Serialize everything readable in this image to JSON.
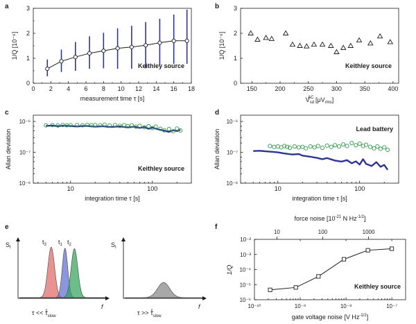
{
  "panel_letters": [
    "a",
    "b",
    "c",
    "d",
    "e",
    "f"
  ],
  "colors": {
    "error_bar": "#2d3493",
    "trace_blue": "#2d3493",
    "circle_green": "#2f9a4a",
    "peak_red": "#e06868",
    "peak_blue": "#5d6fd0",
    "peak_green": "#33a35d",
    "peak_grey": "#999999"
  },
  "chart_data": [
    {
      "id": "a",
      "type": "line",
      "xlabel": "measurement time τ [s]",
      "ylabel": "1/Q [10⁻⁶]",
      "annotation": "Keithley source",
      "xlim": [
        0,
        18
      ],
      "ylim": [
        0,
        3
      ],
      "x_ticks": [
        "0",
        "2",
        "4",
        "6",
        "8",
        "10",
        "12",
        "14",
        "16",
        "18"
      ],
      "y_ticks": [
        "0",
        "1",
        "2",
        "3"
      ],
      "x": [
        1.6,
        3.2,
        4.8,
        6.4,
        8.0,
        9.6,
        11.2,
        12.8,
        14.4,
        16.0,
        17.5
      ],
      "y": [
        0.58,
        0.88,
        1.05,
        1.2,
        1.3,
        1.4,
        1.45,
        1.52,
        1.62,
        1.7,
        1.7
      ],
      "err_low": [
        0.28,
        0.45,
        0.5,
        0.58,
        0.6,
        0.58,
        0.58,
        0.6,
        0.72,
        0.78,
        0.78
      ],
      "err_high": [
        0.95,
        1.35,
        1.65,
        1.88,
        2.02,
        2.2,
        2.3,
        2.45,
        2.58,
        2.75,
        2.95
      ]
    },
    {
      "id": "b",
      "type": "scatter",
      "xlabel": "V",
      "xlabel_sup": "AC",
      "xlabel_sub": "sd",
      "xlabel_unit": " [μV",
      "xlabel_unit_sub": "rms",
      "xlabel_end": "]",
      "ylabel": "1/Q [10⁻⁶]",
      "annotation": "Keithley source",
      "xlim": [
        130,
        410
      ],
      "ylim": [
        0,
        3
      ],
      "x_ticks": [
        "150",
        "200",
        "250",
        "300",
        "350",
        "400"
      ],
      "y_ticks": [
        "0",
        "1",
        "2",
        "3"
      ],
      "x": [
        148,
        160,
        175,
        185,
        210,
        222,
        235,
        247,
        260,
        275,
        290,
        300,
        312,
        325,
        340,
        360,
        377,
        395
      ],
      "y": [
        2.0,
        1.75,
        1.82,
        1.78,
        2.0,
        1.55,
        1.5,
        1.48,
        1.55,
        1.55,
        1.5,
        1.25,
        1.42,
        1.5,
        1.72,
        1.6,
        1.88,
        1.65
      ]
    },
    {
      "id": "c",
      "type": "line",
      "xscale": "log",
      "yscale": "log",
      "xlabel": "integration time τ [s]",
      "ylabel": "Allan deviation",
      "annotation": "Keithley source",
      "xlim": [
        3.5,
        300
      ],
      "ylim": [
        1e-08,
        1.6e-06
      ],
      "x_ticks": [
        "10",
        "100"
      ],
      "y_ticks": [
        "10⁻⁶",
        "10⁻⁷",
        "10⁻⁸"
      ],
      "series": [
        {
          "marker": "line",
          "x": [
            5,
            6,
            7,
            8,
            10,
            12,
            15,
            20,
            25,
            30,
            40,
            50,
            60,
            70,
            80,
            90,
            100,
            120,
            140,
            160,
            180,
            200,
            220
          ],
          "y": [
            7.2e-07,
            7.4e-07,
            7e-07,
            7.3e-07,
            7.1e-07,
            6.9e-07,
            7.2e-07,
            6.8e-07,
            7e-07,
            6.6e-07,
            6.9e-07,
            6.4e-07,
            6.8e-07,
            6.2e-07,
            6.6e-07,
            5.8e-07,
            6.3e-07,
            5.5e-07,
            5e-07,
            4.6e-07,
            5.2e-07,
            4.9e-07,
            5.4e-07
          ]
        },
        {
          "marker": "circle",
          "x": [
            5,
            6,
            7,
            8,
            9,
            10,
            12,
            14,
            16,
            18,
            20,
            23,
            26,
            30,
            35,
            40,
            45,
            50,
            56,
            63,
            70,
            80,
            90,
            100,
            110,
            125,
            140,
            160,
            180,
            200,
            220
          ],
          "y": [
            7.5e-07,
            7.6e-07,
            7.4e-07,
            7.7e-07,
            7.5e-07,
            7.6e-07,
            7.7e-07,
            7.5e-07,
            7.8e-07,
            7.6e-07,
            7.7e-07,
            7.5e-07,
            7.9e-07,
            7.4e-07,
            7.7e-07,
            7.2e-07,
            7.6e-07,
            7e-07,
            7.5e-07,
            6.8e-07,
            7.2e-07,
            6.5e-07,
            7e-07,
            6.1e-07,
            6.8e-07,
            5.8e-07,
            5.2e-07,
            5.7e-07,
            4.8e-07,
            5.9e-07,
            5.1e-07
          ]
        }
      ]
    },
    {
      "id": "d",
      "type": "line",
      "xscale": "log",
      "yscale": "log",
      "xlabel": "integration time τ [s]",
      "ylabel": "Allan deviation",
      "annotation": "Lead battery",
      "xlim": [
        3.5,
        300
      ],
      "ylim": [
        1e-08,
        1.6e-06
      ],
      "x_ticks": [
        "10",
        "100"
      ],
      "y_ticks": [
        "10⁻⁶",
        "10⁻⁷",
        "10⁻⁸"
      ],
      "series": [
        {
          "marker": "line",
          "x": [
            5,
            6,
            7,
            8,
            10,
            12,
            15,
            18,
            20,
            25,
            30,
            35,
            40,
            50,
            60,
            70,
            80,
            90,
            100,
            110,
            120,
            140,
            160,
            180,
            200,
            220
          ],
          "y": [
            1.1e-07,
            1.12e-07,
            1.08e-07,
            1.05e-07,
            1e-07,
            9.2e-08,
            8.5e-08,
            8.8e-08,
            7.8e-08,
            7.2e-08,
            6.6e-08,
            6e-08,
            6.5e-08,
            5.4e-08,
            5e-08,
            5.6e-08,
            4.4e-08,
            5.1e-08,
            4e-08,
            6e-08,
            4.2e-08,
            3.6e-08,
            4.8e-08,
            3.4e-08,
            3.9e-08,
            2.7e-08
          ]
        },
        {
          "marker": "circle",
          "x": [
            8,
            9,
            10,
            11,
            12,
            13,
            14,
            16,
            18,
            20,
            22,
            25,
            28,
            31,
            35,
            40,
            45,
            50,
            56,
            63,
            70,
            80,
            90,
            100,
            110,
            120,
            135,
            150,
            165,
            180,
            200,
            220
          ],
          "y": [
            1.6e-07,
            1.5e-07,
            1.55e-07,
            1.45e-07,
            1.6e-07,
            1.5e-07,
            1.4e-07,
            1.55e-07,
            1.45e-07,
            1.5e-07,
            1.35e-07,
            1.55e-07,
            1.45e-07,
            1.6e-07,
            1.4e-07,
            1.65e-07,
            1.5e-07,
            1.7e-07,
            1.55e-07,
            1.8e-07,
            1.6e-07,
            2e-07,
            1.7e-07,
            1.9e-07,
            1.6e-07,
            1.75e-07,
            1.5e-07,
            1.35e-07,
            1.55e-07,
            1.3e-07,
            1.45e-07,
            1.2e-07
          ]
        }
      ]
    },
    {
      "id": "e",
      "type": "area",
      "left_ylabel": "S",
      "left_ylabel_sub": "I",
      "right_ylabel": "S",
      "right_ylabel_sub": "I",
      "x_label": "f",
      "peak_labels": [
        {
          "main": "t",
          "sub": "3"
        },
        {
          "main": "t",
          "sub": "1"
        },
        {
          "main": "t",
          "sub": "2"
        }
      ],
      "left_caption": {
        "main": "τ << τ",
        "sub": "slow",
        "sup": "c"
      },
      "right_caption": {
        "main": "τ >> τ",
        "sub": "slow",
        "sup": "c"
      },
      "peaks": [
        {
          "name": "t3",
          "center": 0.37,
          "width": 0.055,
          "height": 1.0
        },
        {
          "name": "t1",
          "center": 0.53,
          "width": 0.045,
          "height": 0.98
        },
        {
          "name": "t2",
          "center": 0.64,
          "width": 0.055,
          "height": 0.97
        },
        {
          "name": "broad",
          "center": 0.5,
          "width": 0.11,
          "height": 0.3
        }
      ]
    },
    {
      "id": "f",
      "type": "line",
      "xscale": "log",
      "yscale": "log",
      "xlabel": "gate voltage noise [V Hz",
      "xlabel_sup": "-1/2",
      "xlabel_end": "]",
      "top_xlabel": "force noise [10",
      "top_xlabel_sup": "-21",
      "top_xlabel_mid": " N Hz",
      "top_xlabel_sup2": "-1/2",
      "top_xlabel_end": "]",
      "ylabel": "1/Q",
      "annotation": "Keithley source",
      "xlim": [
        1e-10,
        2e-07
      ],
      "ylim": [
        1e-06,
        0.01
      ],
      "x_ticks": [
        "10⁻¹⁰",
        "10⁻⁹",
        "10⁻⁸",
        "10⁻⁷"
      ],
      "top_x_ticks": [
        "10",
        "100",
        "1000"
      ],
      "y_ticks": [
        "10⁻²",
        "10⁻³",
        "10⁻⁴",
        "10⁻⁵",
        "10⁻⁶"
      ],
      "x": [
        2.2e-10,
        8e-10,
        2.5e-09,
        9e-09,
        3e-08,
        1e-07
      ],
      "y": [
        4.5e-06,
        6.5e-06,
        3.5e-05,
        0.00048,
        0.0019,
        0.0024
      ]
    }
  ]
}
